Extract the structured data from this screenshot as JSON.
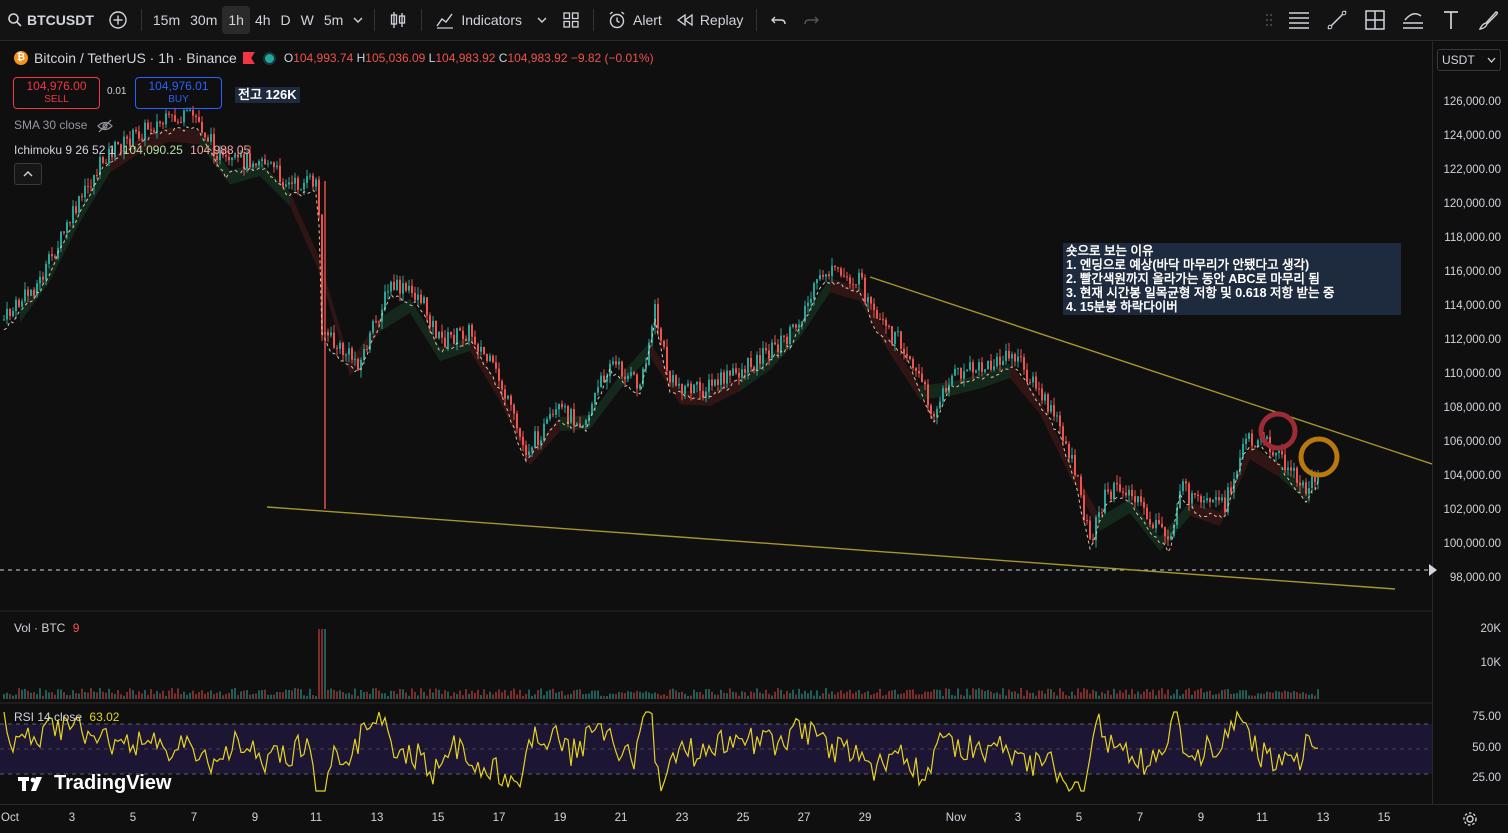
{
  "toolbar": {
    "symbol": "BTCUSDT",
    "intervals": [
      "15m",
      "30m",
      "1h",
      "4h",
      "D",
      "W",
      "5m"
    ],
    "active_interval": "1h",
    "indicators_label": "Indicators",
    "alert_label": "Alert",
    "replay_label": "Replay"
  },
  "legend": {
    "title": "Bitcoin / TetherUS · 1h · Binance",
    "o_label": "O",
    "o_value": "104,993.74",
    "h_label": "H",
    "h_value": "105,036.09",
    "l_label": "L",
    "l_value": "104,983.92",
    "c_label": "C",
    "c_value": "104,983.92",
    "change": "−9.82 (−0.01%)"
  },
  "trade": {
    "sell_price": "104,976.00",
    "sell_label": "SELL",
    "spread": "0.01",
    "buy_price": "104,976.01",
    "buy_label": "BUY"
  },
  "note_label": "전고 126K",
  "indicators": {
    "sma": "SMA 30 close",
    "ichimoku_name": "Ichimoku 9 26 52 1",
    "ichimoku_v1": "104,090.25",
    "ichimoku_v2": "104,988.05"
  },
  "annotation": {
    "lines": [
      "숏으로 보는 이유",
      "1. 엔딩으로 예상(바닥 마무리가 안됐다고 생각)",
      "2. 빨간색원까지 올라가는 동안 ABC로 마무리 됨",
      "3. 현재 시간봉 일목균형 저항 및 0.618 저항 받는 중",
      "4. 15분봉 하락다이버"
    ]
  },
  "currency_selector": "USDT",
  "price_ticks": [
    "126,000.00",
    "124,000.00",
    "122,000.00",
    "120,000.00",
    "118,000.00",
    "116,000.00",
    "114,000.00",
    "112,000.00",
    "110,000.00",
    "108,000.00",
    "106,000.00",
    "104,000.00",
    "102,000.00",
    "100,000.00",
    "98,000.00"
  ],
  "volume": {
    "label": "Vol · BTC",
    "value": "9",
    "ticks": [
      "20K",
      "10K"
    ]
  },
  "rsi": {
    "label": "RSI 14 close",
    "value": "63.02",
    "ticks": [
      "75.00",
      "50.00",
      "25.00"
    ]
  },
  "time_ticks": [
    "Oct",
    "3",
    "5",
    "7",
    "9",
    "11",
    "13",
    "15",
    "17",
    "19",
    "21",
    "23",
    "25",
    "27",
    "29",
    "Nov",
    "3",
    "5",
    "7",
    "9",
    "11",
    "13",
    "15"
  ],
  "brand": "TradingView",
  "colors": {
    "up": "#26a69a",
    "down": "#ef5350",
    "trendline": "#a6962e",
    "rsi": "#e5d422",
    "circle_red": "#9b2c36",
    "circle_orange": "#b8790f"
  }
}
